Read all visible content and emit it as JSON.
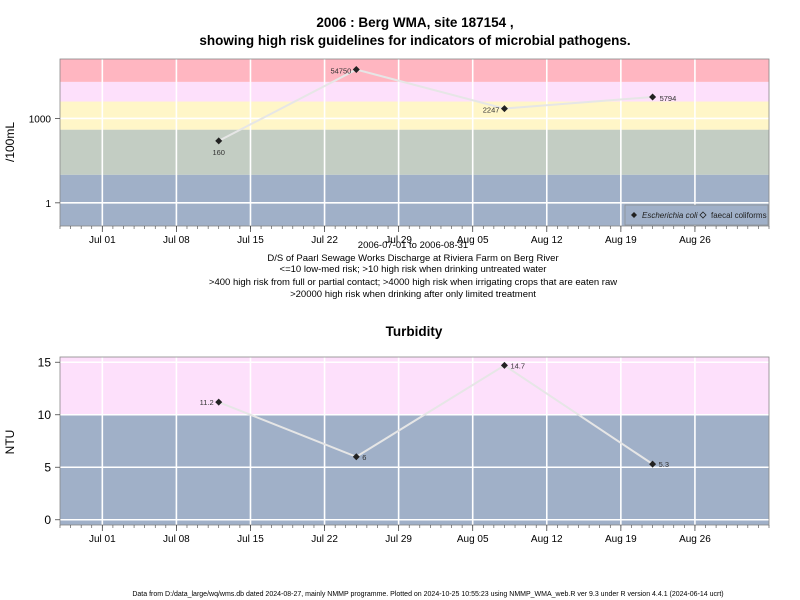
{
  "chart_data": [
    {
      "type": "line",
      "title_line1": "2006 : Berg WMA, site 187154 ,",
      "title_line2": "showing high risk guidelines for indicators of microbial pathogens.",
      "ylabel": "/100mL",
      "y_scale": "log10",
      "ylim": [
        0.15,
        130000
      ],
      "y_ticks": [
        1,
        1000
      ],
      "y_tick_labels": [
        "1",
        "1000"
      ],
      "x_range": [
        "2006-06-27",
        "2006-09-02"
      ],
      "x_ticks": [
        "2006-07-01",
        "2006-07-08",
        "2006-07-15",
        "2006-07-22",
        "2006-07-29",
        "2006-08-05",
        "2006-08-12",
        "2006-08-19",
        "2006-08-26"
      ],
      "x_tick_labels": [
        "Jul 01",
        "Jul 08",
        "Jul 15",
        "Jul 22",
        "Jul 29",
        "Aug 05",
        "Aug 12",
        "Aug 19",
        "Aug 26"
      ],
      "grid": true,
      "risk_bands": [
        {
          "from": 0.15,
          "to": 10,
          "color": "#a0b0c8"
        },
        {
          "from": 10,
          "to": 400,
          "color": "#c3cdc3"
        },
        {
          "from": 400,
          "to": 4000,
          "color": "#fff6c8"
        },
        {
          "from": 4000,
          "to": 20000,
          "color": "#fde0fb"
        },
        {
          "from": 20000,
          "to": 130000,
          "color": "#ffb6c1"
        }
      ],
      "series": [
        {
          "name": "Escherichia coli",
          "x": [
            "2006-07-12",
            "2006-07-25",
            "2006-08-08",
            "2006-08-22"
          ],
          "y": [
            160,
            54750,
            2247,
            5794
          ],
          "labels": [
            "160",
            "54750",
            "2247",
            "5794"
          ]
        }
      ],
      "legend": {
        "placement": "bottom-right",
        "items": [
          "Escherichia coli",
          "faecal coliforms"
        ]
      },
      "notes": [
        "2006-07-01 to 2006-08-31",
        "D/S of Paarl Sewage Works Discharge at Riviera Farm on Berg River",
        "<=10 low-med risk; >10 high risk when drinking untreated water",
        ">400 high risk from full or partial contact; >4000 high risk when irrigating crops that are eaten raw",
        ">20000 high risk when drinking after only limited treatment"
      ]
    },
    {
      "type": "line",
      "title": "Turbidity",
      "ylabel": "NTU",
      "ylim": [
        -0.5,
        15.5
      ],
      "y_ticks": [
        0,
        5,
        10,
        15
      ],
      "y_tick_labels": [
        "0",
        "5",
        "10",
        "15"
      ],
      "x_range": [
        "2006-06-27",
        "2006-09-02"
      ],
      "x_ticks": [
        "2006-07-01",
        "2006-07-08",
        "2006-07-15",
        "2006-07-22",
        "2006-07-29",
        "2006-08-05",
        "2006-08-12",
        "2006-08-19",
        "2006-08-26"
      ],
      "x_tick_labels": [
        "Jul 01",
        "Jul 08",
        "Jul 15",
        "Jul 22",
        "Jul 29",
        "Aug 05",
        "Aug 12",
        "Aug 19",
        "Aug 26"
      ],
      "grid": true,
      "risk_bands": [
        {
          "from": -0.5,
          "to": 10,
          "color": "#a0b0c8"
        },
        {
          "from": 10,
          "to": 15.5,
          "color": "#fde0fb"
        }
      ],
      "series": [
        {
          "x": [
            "2006-07-12",
            "2006-07-25",
            "2006-08-08",
            "2006-08-22"
          ],
          "y": [
            11.2,
            6,
            14.7,
            5.3
          ],
          "labels": [
            "11.2",
            "6",
            "14.7",
            "5.3"
          ]
        }
      ]
    }
  ],
  "footer": "Data from D:/data_large/wq/wms.db dated 2024-08-27, mainly NMMP programme. Plotted on 2024-10-25 10:55:23 using NMMP_WMA_web.R ver 9.3 under R version 4.4.1 (2024-06-14 ucrt)"
}
